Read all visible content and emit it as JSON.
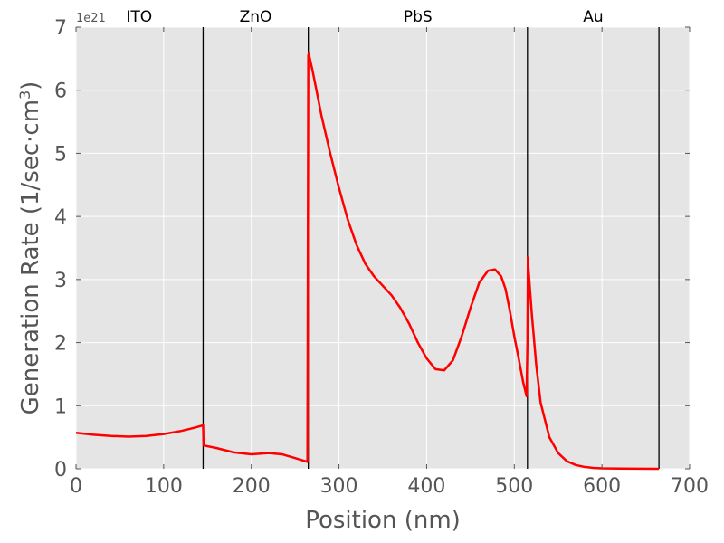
{
  "chart_data": {
    "type": "line",
    "title": "",
    "xlabel": "Position (nm)",
    "ylabel_main": "Generation Rate (1/sec·cm",
    "ylabel_sup": "3",
    "ylabel_close": ")",
    "y_offset_label": "1e21",
    "xlim": [
      0,
      700
    ],
    "ylim": [
      0,
      7
    ],
    "x_ticks": [
      0,
      100,
      200,
      300,
      400,
      500,
      600,
      700
    ],
    "y_ticks": [
      0,
      1,
      2,
      3,
      4,
      5,
      6,
      7
    ],
    "grid": true,
    "background": "#e5e5e5",
    "line_color": "#ff0000",
    "boundary_color": "#000000",
    "boundaries": [
      145,
      265,
      515,
      665
    ],
    "layers": [
      {
        "label": "ITO",
        "x": 72
      },
      {
        "label": "ZnO",
        "x": 205
      },
      {
        "label": "PbS",
        "x": 390
      },
      {
        "label": "Au",
        "x": 590
      }
    ],
    "series": [
      {
        "x": [
          0,
          20,
          40,
          60,
          80,
          100,
          120,
          135,
          145,
          145.5,
          160,
          180,
          200,
          220,
          235,
          250,
          264,
          265,
          265.5,
          270,
          280,
          290,
          300,
          310,
          320,
          330,
          340,
          350,
          360,
          370,
          380,
          390,
          400,
          410,
          420,
          430,
          440,
          450,
          460,
          470,
          478,
          485,
          490,
          495,
          500,
          505,
          510,
          514,
          515,
          515.5,
          516,
          520,
          525,
          530,
          540,
          550,
          560,
          570,
          580,
          590,
          600,
          620,
          640,
          665
        ],
        "y": [
          0.57,
          0.54,
          0.52,
          0.51,
          0.52,
          0.55,
          0.6,
          0.65,
          0.69,
          0.37,
          0.33,
          0.26,
          0.23,
          0.25,
          0.23,
          0.17,
          0.11,
          6.55,
          6.58,
          6.3,
          5.6,
          5.0,
          4.45,
          3.95,
          3.55,
          3.25,
          3.05,
          2.9,
          2.75,
          2.55,
          2.3,
          2.0,
          1.75,
          1.58,
          1.56,
          1.72,
          2.1,
          2.55,
          2.95,
          3.14,
          3.16,
          3.05,
          2.85,
          2.5,
          2.1,
          1.75,
          1.38,
          1.15,
          2.0,
          3.35,
          3.2,
          2.45,
          1.65,
          1.05,
          0.5,
          0.25,
          0.12,
          0.06,
          0.03,
          0.015,
          0.008,
          0.004,
          0.002,
          0.0
        ]
      }
    ]
  }
}
